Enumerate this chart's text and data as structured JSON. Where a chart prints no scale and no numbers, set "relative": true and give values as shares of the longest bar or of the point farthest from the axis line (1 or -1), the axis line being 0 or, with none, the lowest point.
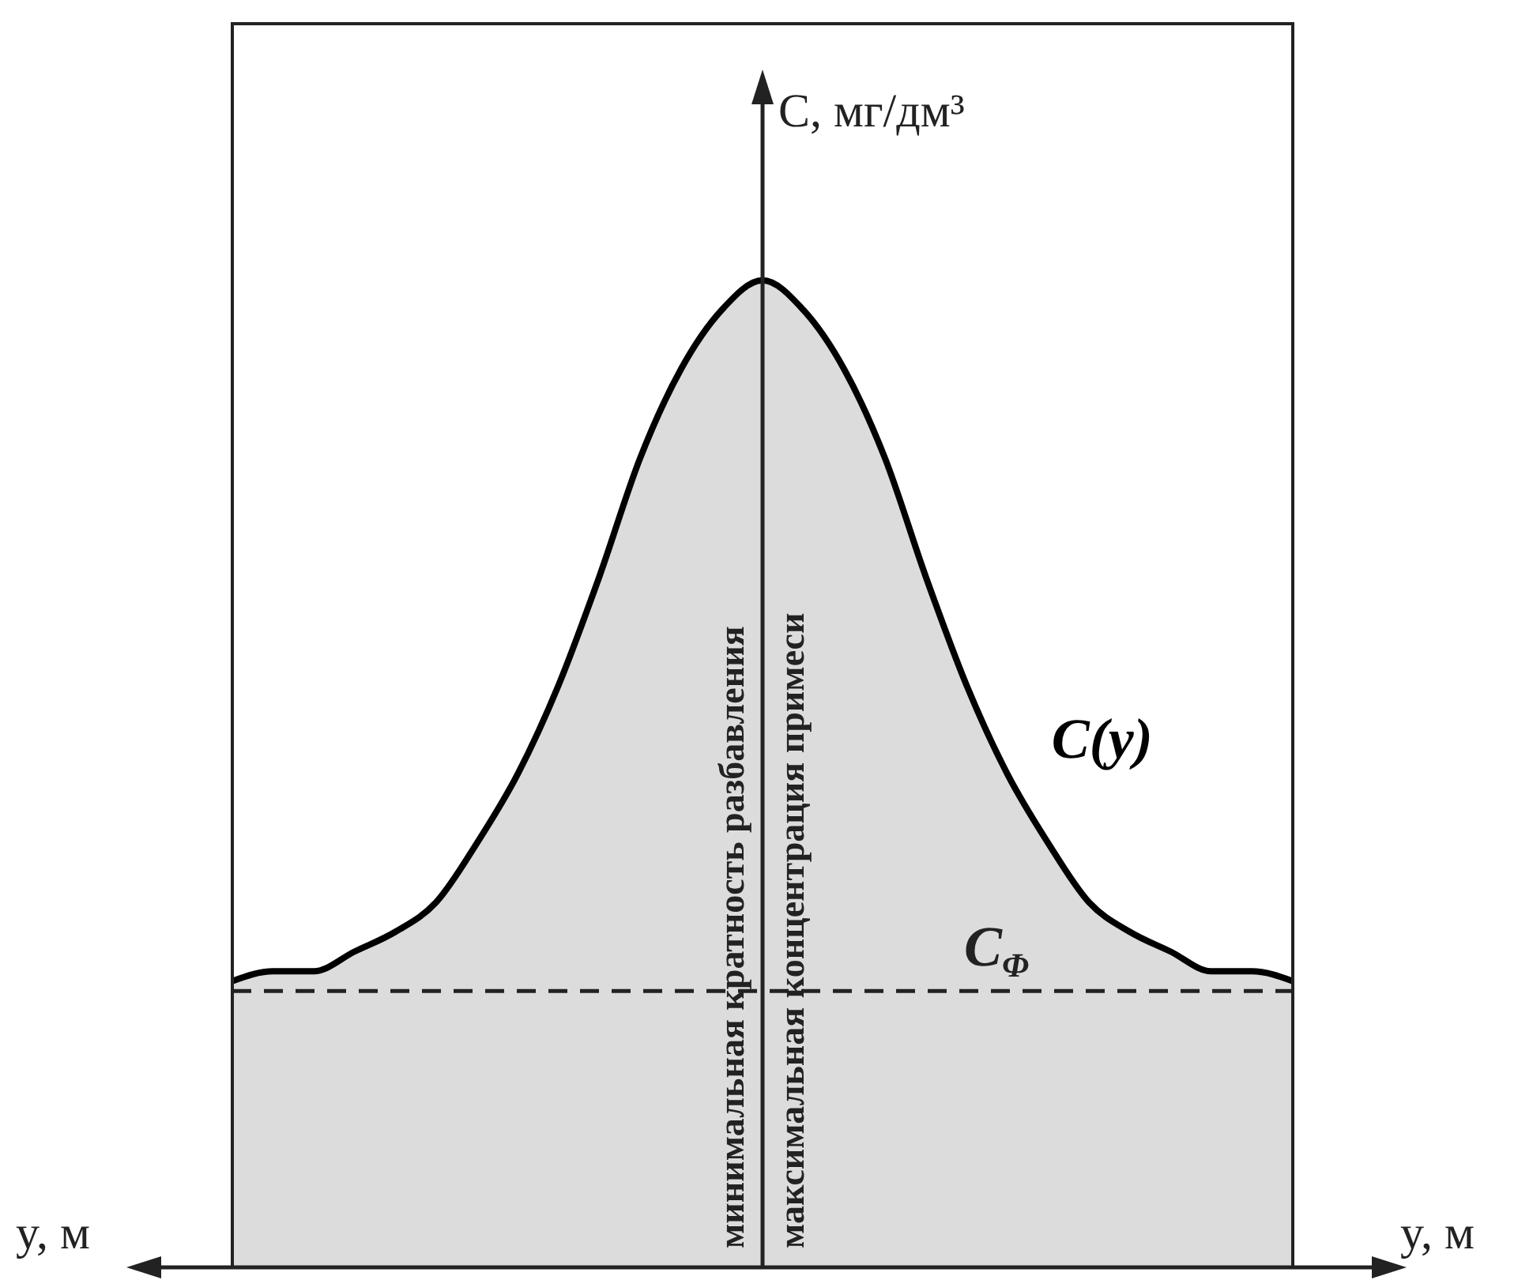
{
  "chart_data": {
    "type": "area",
    "relative": true,
    "xlabel": "y, м",
    "ylabel": "C, мг/дм³",
    "categories": [
      null,
      null,
      null,
      null,
      null,
      null,
      null,
      null,
      null,
      null,
      null,
      null,
      null,
      null,
      null,
      null,
      null,
      null,
      null,
      null,
      null,
      null,
      null,
      null,
      null,
      null,
      null
    ],
    "series": [
      {
        "name": "C(y)",
        "color": "#000000",
        "values": [
          0.29,
          0.3,
          0.3,
          0.32,
          0.34,
          0.37,
          0.43,
          0.5,
          0.59,
          0.7,
          0.82,
          0.91,
          0.97,
          1,
          0.97,
          0.91,
          0.82,
          0.7,
          0.59,
          0.5,
          0.43,
          0.37,
          0.34,
          0.32,
          0.3,
          0.3,
          0.29
        ]
      }
    ],
    "ref_lines": [
      {
        "axis": "y",
        "value": 0.28,
        "label": "C$_{Φ}$",
        "line_style": "dashed"
      }
    ],
    "annotations": [
      "минимальная кратность разбавления",
      "максимальная концентрация примеси"
    ]
  }
}
